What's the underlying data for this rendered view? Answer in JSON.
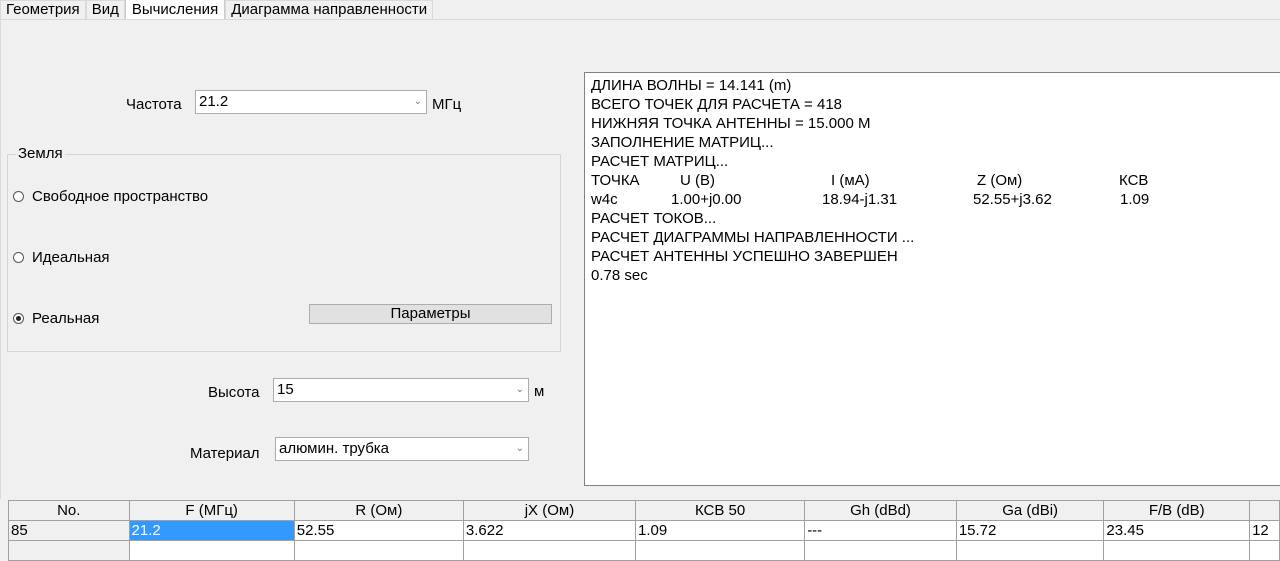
{
  "tabs": [
    "Геометрия",
    "Вид",
    "Вычисления",
    "Диаграмма направленности"
  ],
  "active_tab": 2,
  "frequency": {
    "label": "Частота",
    "value": "21.2",
    "unit": "МГц"
  },
  "ground": {
    "title": "Земля",
    "options": [
      "Свободное пространство",
      "Идеальная",
      "Реальная"
    ],
    "selected": 2,
    "params_button": "Параметры"
  },
  "height": {
    "label": "Высота",
    "value": "15",
    "unit": "м"
  },
  "material": {
    "label": "Материал",
    "value": "алюмин. трубка"
  },
  "log": {
    "lines_top": [
      "ДЛИНА ВОЛНЫ = 14.141 (m)",
      "ВСЕГО ТОЧЕК ДЛЯ РАСЧЕТА = 418",
      "НИЖНЯЯ ТОЧКА АНТЕННЫ = 15.000 М",
      "ЗАПОЛНЕНИЕ МАТРИЦ...",
      "РАСЧЕТ МАТРИЦ..."
    ],
    "header": [
      "ТОЧКА",
      "U (В)",
      "I (мА)",
      "Z (Ом)",
      "КСВ"
    ],
    "values": [
      "w4c",
      "1.00+j0.00",
      "18.94-j1.31",
      "52.55+j3.62",
      "1.09"
    ],
    "lines_bottom": [
      "РАСЧЕТ ТОКОВ...",
      "РАСЧЕТ ДИАГРАММЫ НАПРАВЛЕННОСТИ ...",
      "РАСЧЕТ АНТЕННЫ УСПЕШНО ЗАВЕРШЕН",
      "0.78 sec"
    ]
  },
  "table": {
    "columns": [
      "No.",
      "F (МГц)",
      "R (Ом)",
      "jX (Ом)",
      "КСВ 50",
      "Gh (dBd)",
      "Ga (dBi)",
      "F/B (dB)",
      ""
    ],
    "rows": [
      [
        "85",
        "21.2",
        "52.55",
        "3.622",
        "1.09",
        "---",
        "15.72",
        "23.45",
        "12"
      ],
      [
        "",
        "",
        "",
        "",
        "",
        "",
        "",
        "",
        ""
      ]
    ]
  },
  "colors": {
    "selection": "#3399ff"
  }
}
